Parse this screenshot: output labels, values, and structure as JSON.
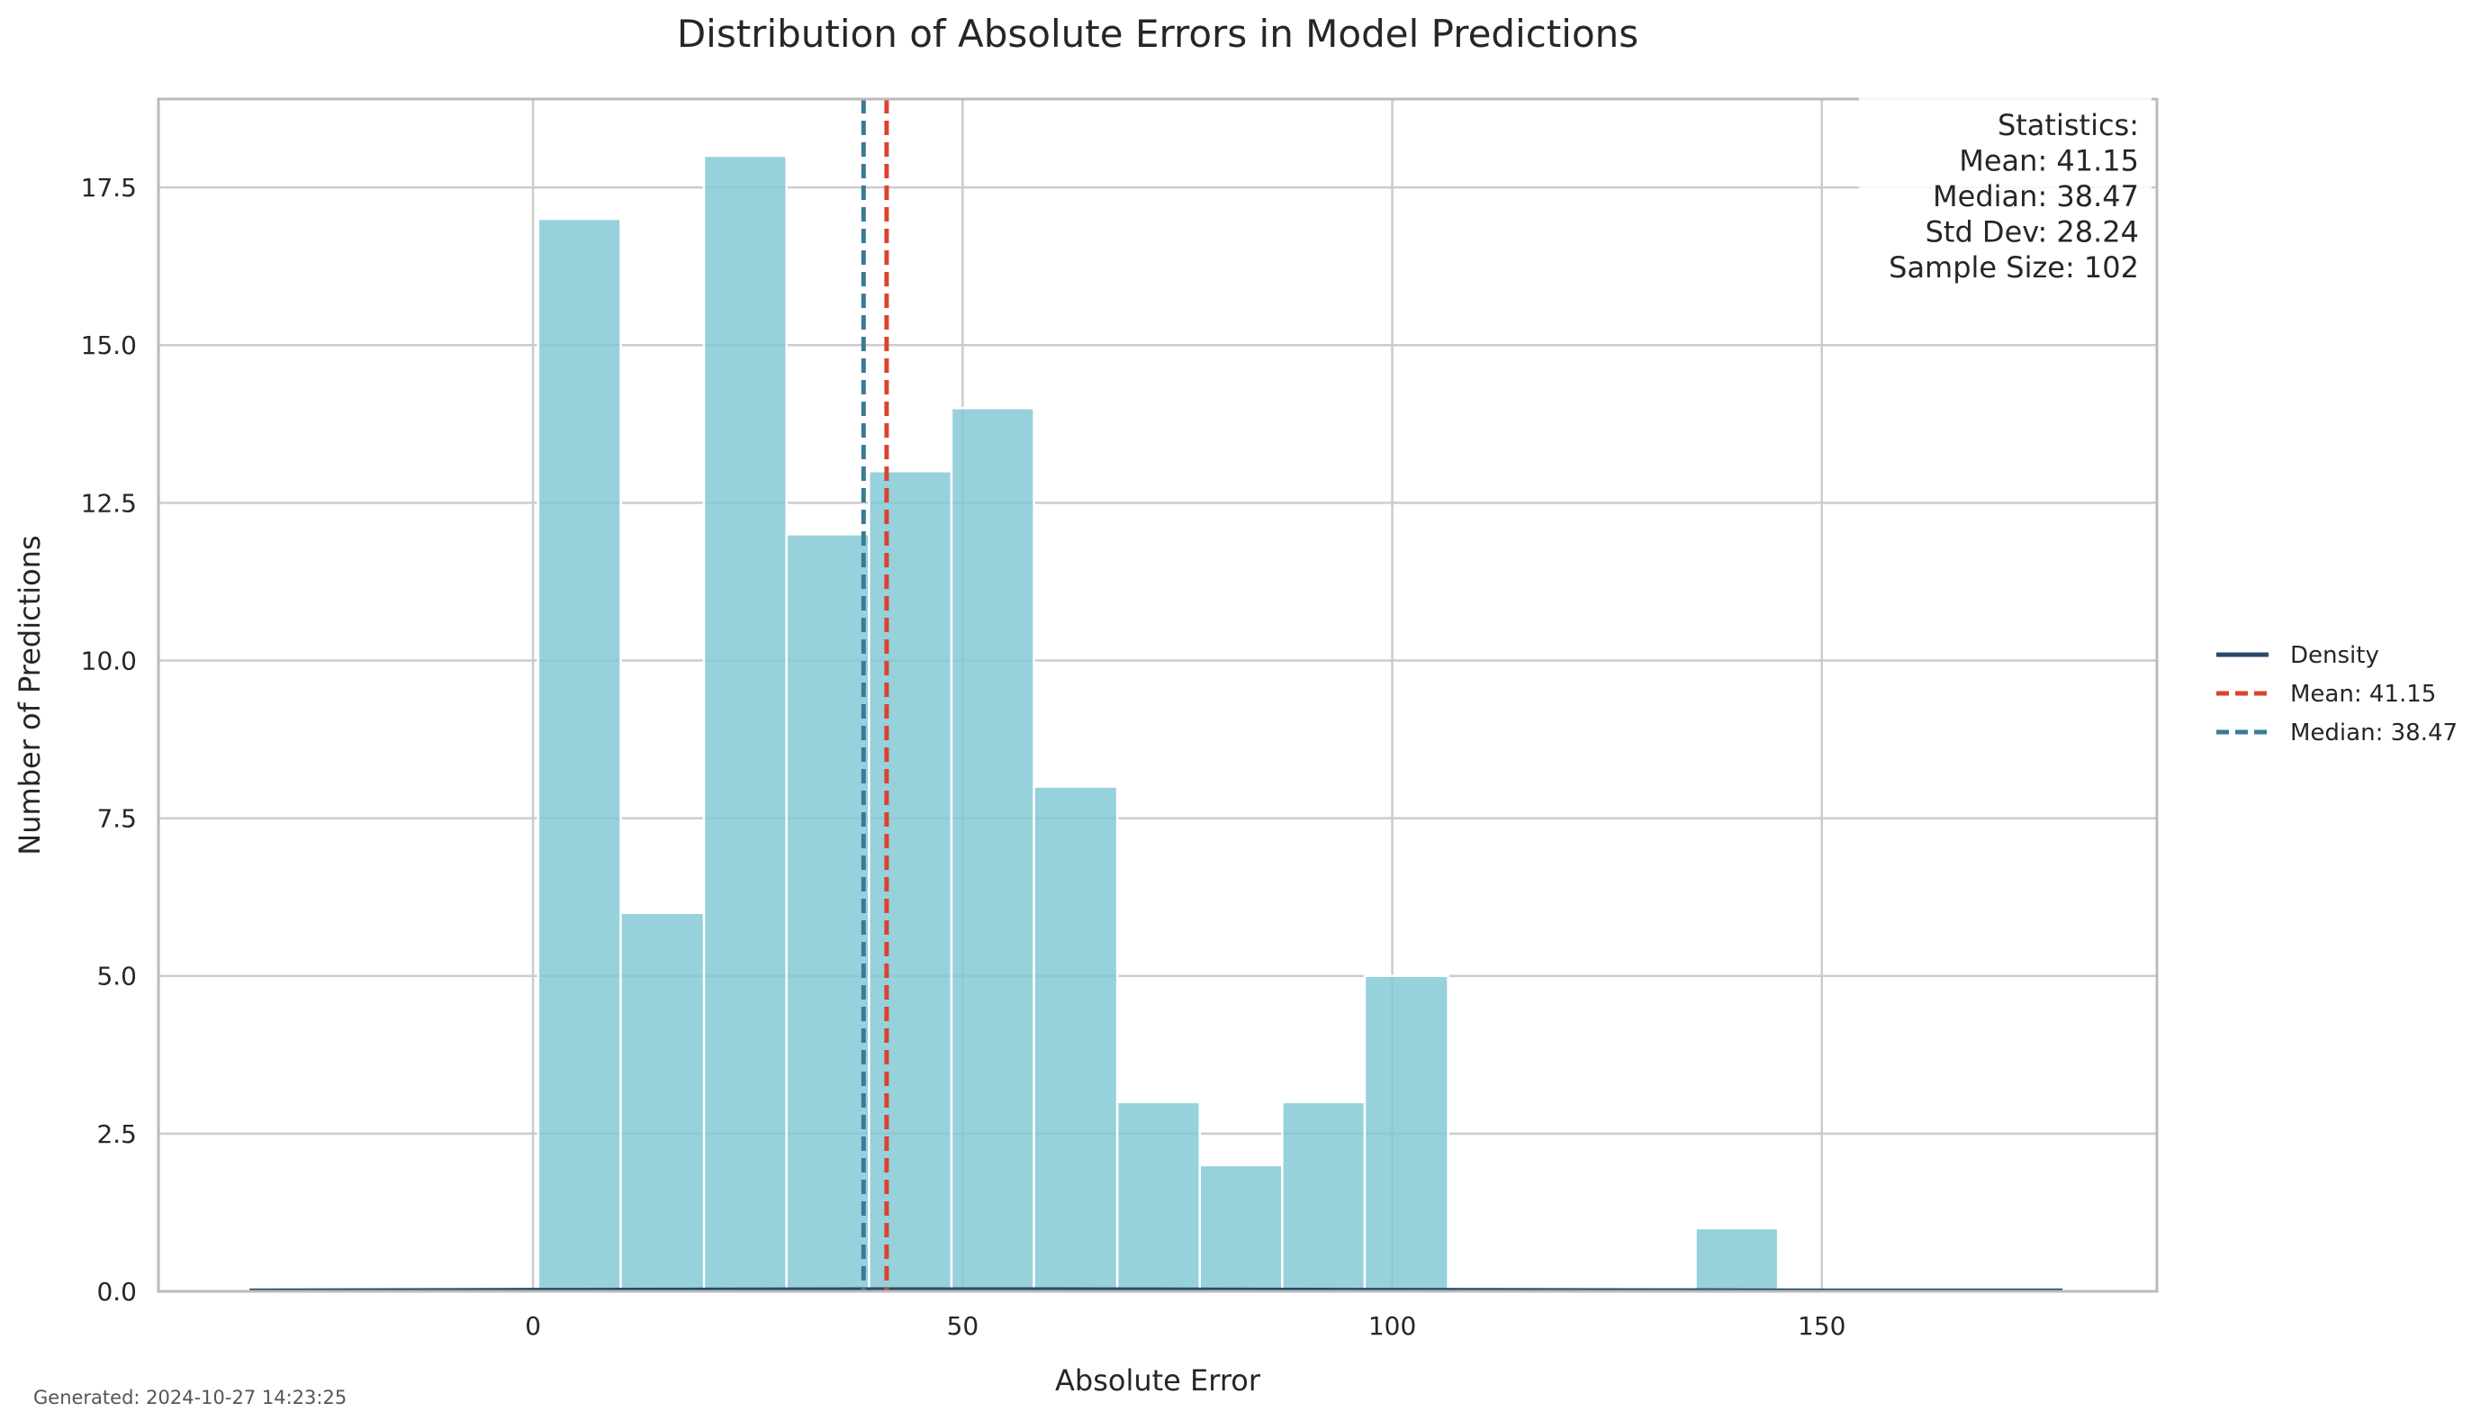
{
  "footer": {
    "generated_text": "Generated: 2024-10-27 14:23:25"
  },
  "colors": {
    "bar_fill": "#7fc7d4",
    "mean_line": "#d9432f",
    "median_line": "#3a7a96",
    "density_line": "#2b4a6b",
    "grid": "#cccccc",
    "axes_frame": "#bbbbbb",
    "text": "#262626"
  },
  "chart_data": {
    "type": "bar",
    "title": "Distribution of Absolute Errors in Model Predictions",
    "xlabel": "Absolute Error",
    "ylabel": "Number of Predictions",
    "xlim": [
      -43.6,
      189.0
    ],
    "ylim": [
      0,
      18.9
    ],
    "xticks": [
      0,
      50,
      100,
      150
    ],
    "xtick_labels": [
      "0",
      "50",
      "100",
      "150"
    ],
    "yticks": [
      0,
      2.5,
      5,
      7.5,
      10,
      12.5,
      15,
      17.5
    ],
    "ytick_labels": [
      "0.0",
      "2.5",
      "5.0",
      "7.5",
      "10.0",
      "12.5",
      "15.0",
      "17.5"
    ],
    "grid": true,
    "bins": [
      {
        "start": 0.6,
        "end": 10.2,
        "count": 17
      },
      {
        "start": 10.2,
        "end": 19.9,
        "count": 6
      },
      {
        "start": 19.9,
        "end": 29.5,
        "count": 18
      },
      {
        "start": 29.5,
        "end": 39.1,
        "count": 12
      },
      {
        "start": 39.1,
        "end": 48.7,
        "count": 13
      },
      {
        "start": 48.7,
        "end": 58.3,
        "count": 14
      },
      {
        "start": 58.3,
        "end": 68.0,
        "count": 8
      },
      {
        "start": 68.0,
        "end": 77.6,
        "count": 3
      },
      {
        "start": 77.6,
        "end": 87.2,
        "count": 2
      },
      {
        "start": 87.2,
        "end": 96.8,
        "count": 3
      },
      {
        "start": 96.8,
        "end": 106.5,
        "count": 5
      },
      {
        "start": 106.5,
        "end": 116.1,
        "count": 0
      },
      {
        "start": 116.1,
        "end": 125.7,
        "count": 0
      },
      {
        "start": 125.7,
        "end": 135.3,
        "count": 0
      },
      {
        "start": 135.3,
        "end": 144.9,
        "count": 1
      }
    ],
    "density": {
      "name": "Density",
      "x": [
        -33,
        0,
        40,
        60,
        100,
        150,
        178
      ],
      "y": [
        0.02,
        0.03,
        0.04,
        0.04,
        0.03,
        0.02,
        0.02
      ]
    },
    "mean": {
      "value": 41.15,
      "label": "Mean: 41.15"
    },
    "median": {
      "value": 38.47,
      "label": "Median: 38.47"
    },
    "legend": {
      "placement": "outside-right",
      "entries": [
        {
          "label": "Density",
          "style": "solid",
          "color_key": "density_line"
        },
        {
          "label": "Mean: 41.15",
          "style": "dashed",
          "color_key": "mean_line"
        },
        {
          "label": "Median: 38.47",
          "style": "dashed",
          "color_key": "median_line"
        }
      ]
    },
    "stats_box": {
      "placement": "top-right",
      "lines": [
        "Statistics:",
        "Mean: 41.15",
        "Median: 38.47",
        "Std Dev: 28.24",
        "Sample Size: 102"
      ]
    }
  }
}
